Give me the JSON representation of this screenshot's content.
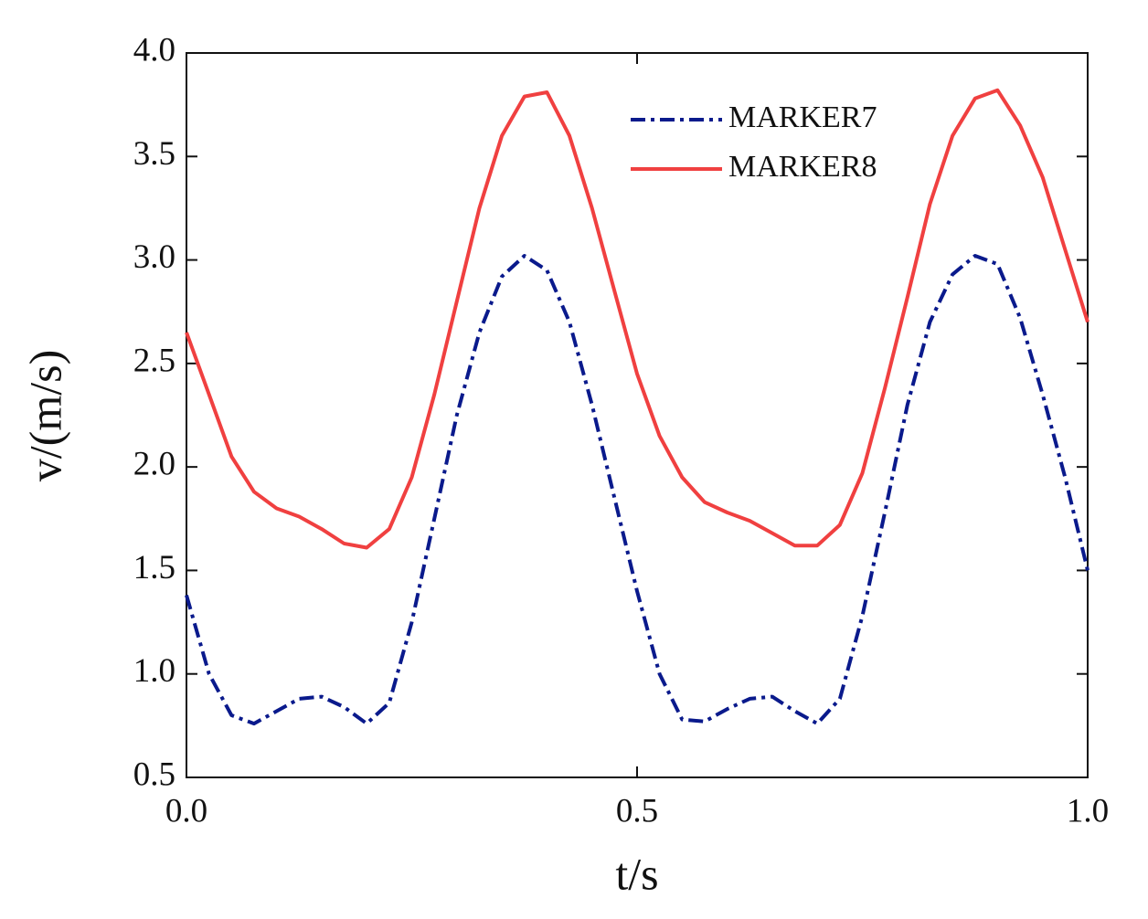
{
  "chart_data": {
    "type": "line",
    "xlabel": "t/s",
    "ylabel": "v/(m/s)",
    "x": [
      0,
      0.025,
      0.05,
      0.075,
      0.1,
      0.125,
      0.15,
      0.175,
      0.2,
      0.225,
      0.25,
      0.275,
      0.3,
      0.325,
      0.35,
      0.375,
      0.4,
      0.425,
      0.45,
      0.475,
      0.5,
      0.525,
      0.55,
      0.575,
      0.6,
      0.625,
      0.65,
      0.675,
      0.7,
      0.725,
      0.75,
      0.775,
      0.8,
      0.825,
      0.85,
      0.875,
      0.9,
      0.925,
      0.95,
      0.975,
      1.0
    ],
    "series": [
      {
        "name": "MARKER7",
        "color": "#0a1a8c",
        "dash": "dash-dot",
        "values": [
          1.38,
          1.0,
          0.8,
          0.76,
          0.82,
          0.88,
          0.89,
          0.84,
          0.76,
          0.86,
          1.25,
          1.75,
          2.25,
          2.65,
          2.92,
          3.02,
          2.95,
          2.7,
          2.3,
          1.85,
          1.4,
          1.0,
          0.78,
          0.77,
          0.83,
          0.88,
          0.89,
          0.82,
          0.76,
          0.88,
          1.28,
          1.78,
          2.3,
          2.7,
          2.93,
          3.02,
          2.98,
          2.72,
          2.35,
          1.95,
          1.5
        ]
      },
      {
        "name": "MARKER8",
        "color": "#f04040",
        "dash": "solid",
        "values": [
          2.65,
          2.35,
          2.05,
          1.88,
          1.8,
          1.76,
          1.7,
          1.63,
          1.61,
          1.7,
          1.95,
          2.35,
          2.8,
          3.25,
          3.6,
          3.79,
          3.81,
          3.6,
          3.25,
          2.85,
          2.45,
          2.15,
          1.95,
          1.83,
          1.78,
          1.74,
          1.68,
          1.62,
          1.62,
          1.72,
          1.97,
          2.38,
          2.82,
          3.27,
          3.6,
          3.78,
          3.82,
          3.65,
          3.4,
          3.05,
          2.7
        ]
      }
    ],
    "xlim": [
      0,
      1
    ],
    "xticks": [
      {
        "value": 0,
        "label": "0.0"
      },
      0.5,
      {
        "value": 1,
        "label": "1.0"
      }
    ],
    "ylim": [
      0.5,
      4
    ],
    "yticks": [
      0.5,
      {
        "value": 1,
        "label": "1.0"
      },
      1.5,
      {
        "value": 2,
        "label": "2.0"
      },
      2.5,
      {
        "value": 3,
        "label": "3.0"
      },
      3.5,
      {
        "value": 4,
        "label": "4.0"
      }
    ],
    "legend": "upper-right"
  }
}
